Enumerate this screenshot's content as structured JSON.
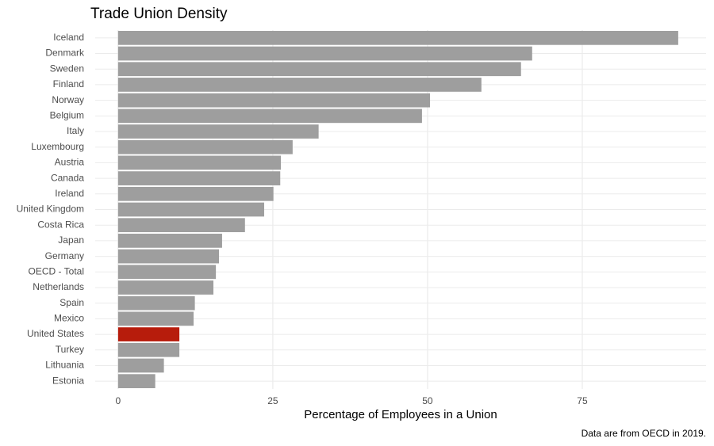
{
  "chart_data": {
    "type": "bar",
    "orientation": "horizontal",
    "title": "Trade Union Density",
    "x_label": "Percentage of Employees in a Union",
    "caption": "Data are from OECD in 2019.",
    "categories": [
      "Iceland",
      "Denmark",
      "Sweden",
      "Finland",
      "Norway",
      "Belgium",
      "Italy",
      "Luxembourg",
      "Austria",
      "Canada",
      "Ireland",
      "United Kingdom",
      "Costa Rica",
      "Japan",
      "Germany",
      "OECD - Total",
      "Netherlands",
      "Spain",
      "Mexico",
      "United States",
      "Turkey",
      "Lithuania",
      "Estonia"
    ],
    "values": [
      90.5,
      66.9,
      65.1,
      58.7,
      50.4,
      49.1,
      32.4,
      28.2,
      26.3,
      26.2,
      25.1,
      23.6,
      20.5,
      16.8,
      16.3,
      15.8,
      15.4,
      12.4,
      12.2,
      9.9,
      9.9,
      7.4,
      6.0
    ],
    "colors": [
      "#9e9e9e",
      "#9e9e9e",
      "#9e9e9e",
      "#9e9e9e",
      "#9e9e9e",
      "#9e9e9e",
      "#9e9e9e",
      "#9e9e9e",
      "#9e9e9e",
      "#9e9e9e",
      "#9e9e9e",
      "#9e9e9e",
      "#9e9e9e",
      "#9e9e9e",
      "#9e9e9e",
      "#9e9e9e",
      "#9e9e9e",
      "#9e9e9e",
      "#9e9e9e",
      "#b71c0c",
      "#9e9e9e",
      "#9e9e9e",
      "#9e9e9e"
    ],
    "xlim": [
      -3.7,
      95
    ],
    "xticks": [
      0,
      25,
      50,
      75
    ],
    "grid": true
  }
}
